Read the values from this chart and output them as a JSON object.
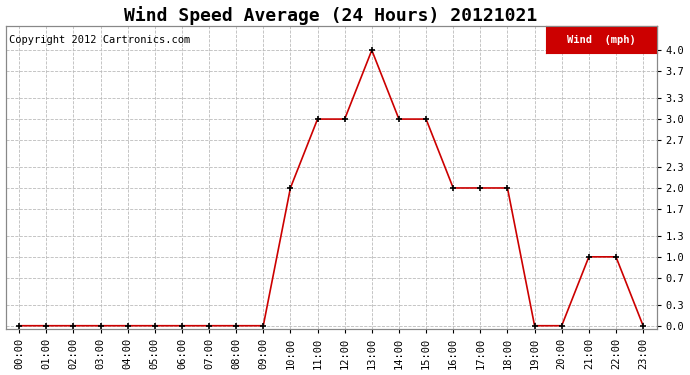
{
  "title": "Wind Speed Average (24 Hours) 20121021",
  "copyright": "Copyright 2012 Cartronics.com",
  "legend_label": "Wind  (mph)",
  "legend_bg": "#cc0000",
  "legend_text_color": "#ffffff",
  "x_labels": [
    "00:00",
    "01:00",
    "02:00",
    "03:00",
    "04:00",
    "05:00",
    "06:00",
    "07:00",
    "08:00",
    "09:00",
    "10:00",
    "11:00",
    "12:00",
    "13:00",
    "14:00",
    "15:00",
    "16:00",
    "17:00",
    "18:00",
    "19:00",
    "20:00",
    "21:00",
    "22:00",
    "23:00"
  ],
  "y_values": [
    0.0,
    0.0,
    0.0,
    0.0,
    0.0,
    0.0,
    0.0,
    0.0,
    0.0,
    0.0,
    2.0,
    3.0,
    3.0,
    4.0,
    3.0,
    3.0,
    2.0,
    2.0,
    2.0,
    0.0,
    0.0,
    1.0,
    1.0,
    0.0
  ],
  "line_color": "#cc0000",
  "marker_color": "#000000",
  "marker_style": "+",
  "marker_size": 4,
  "line_width": 1.2,
  "ylim": [
    -0.05,
    4.35
  ],
  "yticks": [
    0.0,
    0.3,
    0.7,
    1.0,
    1.3,
    1.7,
    2.0,
    2.3,
    2.7,
    3.0,
    3.3,
    3.7,
    4.0
  ],
  "grid_color": "#bbbbbb",
  "grid_style": "--",
  "background_color": "#ffffff",
  "title_fontsize": 13,
  "tick_fontsize": 7.5,
  "copyright_fontsize": 7.5,
  "right_yaxis": true
}
